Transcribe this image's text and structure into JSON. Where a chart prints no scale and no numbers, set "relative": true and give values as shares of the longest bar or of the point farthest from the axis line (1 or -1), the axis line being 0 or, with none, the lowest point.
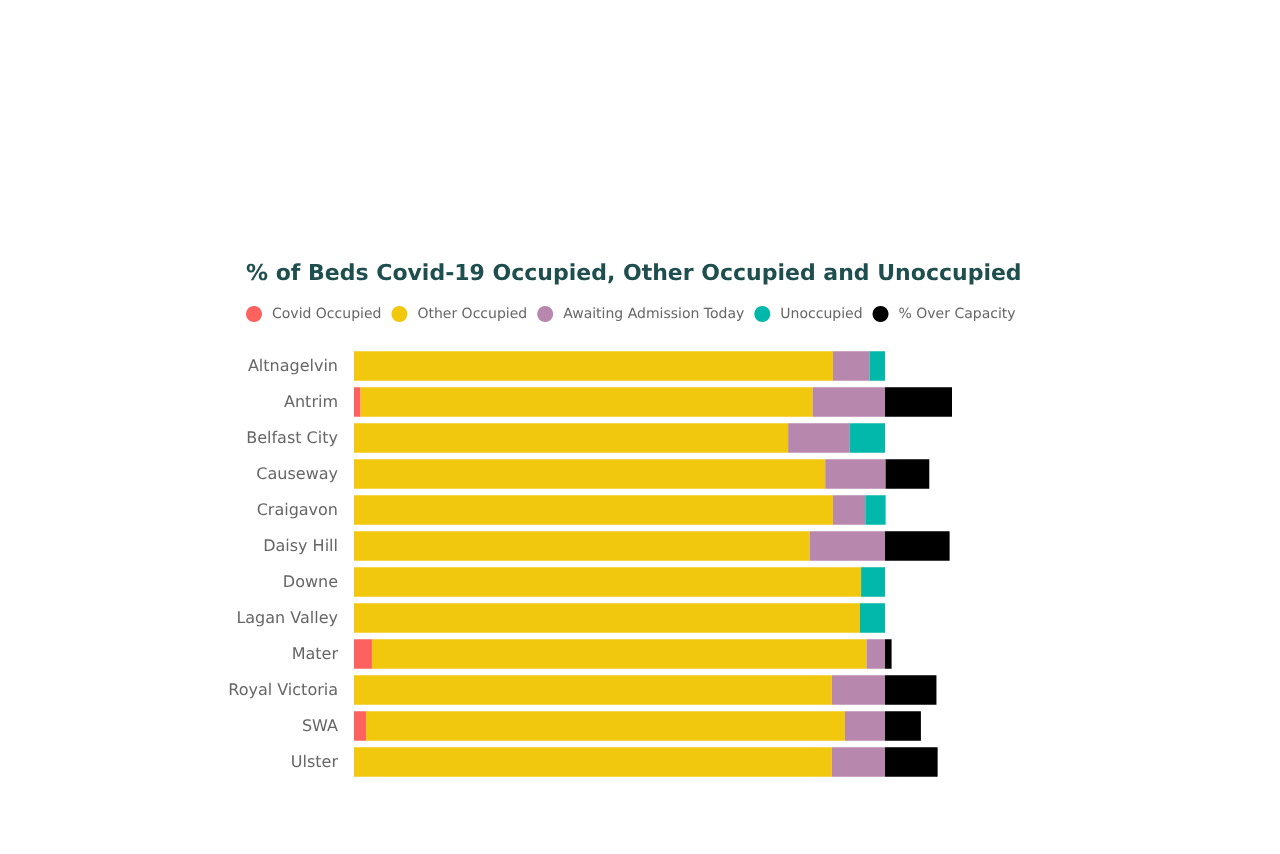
{
  "chart_data": {
    "type": "bar",
    "orientation": "horizontal",
    "stacked": true,
    "relative": true,
    "title": "% of Beds Covid-19 Occupied, Other Occupied and Unoccupied",
    "legend": "top left",
    "categories": [
      "Altnagelvin",
      "Antrim",
      "Belfast City",
      "Causeway",
      "Craigavon",
      "Daisy Hill",
      "Downe",
      "Lagan Valley",
      "Mater",
      "Royal Victoria",
      "SWA",
      "Ulster"
    ],
    "series": [
      {
        "name": "Covid Occupied",
        "color": "#fd625e",
        "values": [
          null,
          0.011,
          null,
          null,
          null,
          null,
          null,
          null,
          0.03,
          null,
          0.02,
          null
        ]
      },
      {
        "name": "Other Occupied",
        "color": "#f2c80f",
        "values": [
          0.801,
          0.756,
          0.726,
          0.788,
          0.801,
          0.762,
          0.848,
          0.846,
          0.827,
          0.799,
          0.801,
          0.799
        ]
      },
      {
        "name": "Awaiting Admission Today",
        "color": "#b887ad",
        "values": [
          0.061,
          0.121,
          0.103,
          0.101,
          0.054,
          0.126,
          null,
          null,
          0.031,
          0.089,
          0.067,
          0.089
        ]
      },
      {
        "name": "Unoccupied",
        "color": "#01b8aa",
        "values": [
          0.026,
          null,
          0.059,
          null,
          0.034,
          null,
          0.04,
          0.042,
          null,
          null,
          null,
          null
        ]
      },
      {
        "name": "% Over Capacity",
        "color": "#000000",
        "values": [
          null,
          0.112,
          null,
          0.073,
          null,
          0.108,
          null,
          null,
          0.011,
          0.086,
          0.06,
          0.088
        ]
      }
    ]
  }
}
